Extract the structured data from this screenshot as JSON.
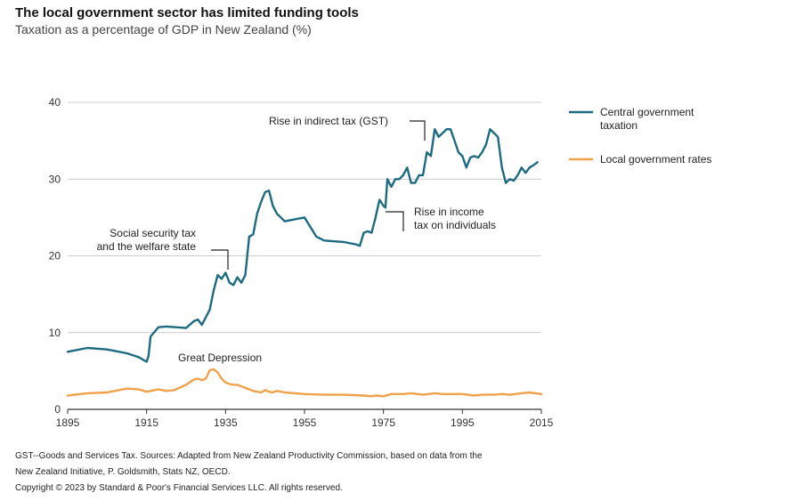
{
  "header": {
    "title": "The local government sector has limited funding tools",
    "subtitle": "Taxation as a percentage of GDP in New Zealand (%)"
  },
  "footer": {
    "line1": "GST--Goods and Services Tax. Sources: Adapted from New Zealand Productivity Commission, based on data from the",
    "line2": "New Zealand Initiative, P. Goldsmith, Stats NZ, OECD.",
    "line3": "Copyright © 2023 by Standard & Poor's Financial Services LLC. All rights reserved."
  },
  "colors": {
    "central": "#1c6b80",
    "local": "#f0a24a",
    "grid": "#bbbbbb",
    "axis": "#333333"
  },
  "chart_data": {
    "type": "line",
    "title": "",
    "xlabel": "",
    "ylabel": "",
    "xlim": [
      1895,
      2015
    ],
    "ylim": [
      0,
      40
    ],
    "xticks": [
      1895,
      1915,
      1935,
      1955,
      1975,
      1995,
      2015
    ],
    "yticks": [
      0,
      10,
      20,
      30,
      40
    ],
    "grid": "horizontal",
    "legend": "right",
    "series": [
      {
        "name": "Central government taxation",
        "color": "#1c6b80",
        "x": [
          1895,
          1900,
          1905,
          1910,
          1913,
          1915,
          1915.5,
          1916,
          1918,
          1920,
          1925,
          1927,
          1928,
          1929,
          1930,
          1931,
          1932,
          1933,
          1934,
          1935,
          1936,
          1937,
          1938,
          1939,
          1940,
          1941,
          1942,
          1943,
          1944,
          1945,
          1946,
          1947,
          1948,
          1950,
          1953,
          1955,
          1958,
          1960,
          1965,
          1968,
          1969,
          1970,
          1971,
          1972,
          1973,
          1974,
          1975,
          1975.5,
          1976,
          1977,
          1978,
          1979,
          1980,
          1981,
          1982,
          1983,
          1984,
          1985,
          1986,
          1987,
          1988,
          1989,
          1990,
          1991,
          1992,
          1993,
          1994,
          1995,
          1996,
          1997,
          1998,
          1999,
          2000,
          2001,
          2002,
          2003,
          2004,
          2005,
          2006,
          2007,
          2008,
          2009,
          2010,
          2011,
          2012,
          2013,
          2014
        ],
        "values": [
          7.5,
          8.0,
          7.8,
          7.3,
          6.8,
          6.2,
          7.0,
          9.5,
          10.7,
          10.8,
          10.6,
          11.5,
          11.7,
          11.0,
          12.0,
          13.0,
          15.5,
          17.5,
          17.0,
          17.8,
          16.5,
          16.2,
          17.2,
          16.5,
          17.5,
          22.5,
          22.8,
          25.5,
          27.0,
          28.3,
          28.5,
          26.5,
          25.5,
          24.5,
          24.8,
          25.0,
          22.5,
          22.0,
          21.8,
          21.5,
          21.3,
          23.0,
          23.2,
          23.0,
          25.0,
          27.3,
          26.5,
          26.3,
          30.0,
          29.0,
          30.0,
          30.0,
          30.5,
          31.5,
          29.5,
          29.5,
          30.5,
          30.5,
          33.5,
          33.0,
          36.5,
          35.5,
          36.0,
          36.5,
          36.5,
          35.0,
          33.5,
          33.0,
          31.5,
          32.8,
          33.0,
          32.8,
          33.5,
          34.5,
          36.5,
          36.0,
          35.5,
          31.5,
          29.5,
          30.0,
          29.8,
          30.5,
          31.5,
          30.8,
          31.5,
          31.8,
          32.2
        ]
      },
      {
        "name": "Local government rates",
        "color": "#f0a24a",
        "x": [
          1895,
          1900,
          1905,
          1910,
          1913,
          1915,
          1918,
          1920,
          1922,
          1925,
          1927,
          1928,
          1929,
          1930,
          1931,
          1932,
          1933,
          1934,
          1935,
          1936,
          1937,
          1938,
          1940,
          1942,
          1943,
          1944,
          1945,
          1946,
          1947,
          1948,
          1950,
          1955,
          1960,
          1965,
          1970,
          1972,
          1973,
          1975,
          1977,
          1980,
          1982,
          1985,
          1988,
          1990,
          1992,
          1995,
          1998,
          2000,
          2003,
          2005,
          2007,
          2010,
          2012,
          2015
        ],
        "values": [
          1.8,
          2.1,
          2.2,
          2.7,
          2.6,
          2.3,
          2.6,
          2.4,
          2.5,
          3.2,
          3.9,
          4.0,
          3.8,
          4.0,
          5.1,
          5.2,
          4.8,
          4.0,
          3.5,
          3.3,
          3.2,
          3.2,
          2.8,
          2.4,
          2.3,
          2.2,
          2.5,
          2.3,
          2.2,
          2.4,
          2.2,
          2.0,
          1.9,
          1.9,
          1.8,
          1.7,
          1.8,
          1.7,
          2.0,
          2.0,
          2.1,
          1.9,
          2.1,
          2.0,
          2.0,
          2.0,
          1.8,
          1.9,
          1.9,
          2.0,
          1.9,
          2.1,
          2.2,
          2.0
        ]
      }
    ],
    "annotations": [
      {
        "id": "gst",
        "text": [
          "Rise in indirect tax (GST)"
        ]
      },
      {
        "id": "income",
        "text": [
          "Rise in income",
          "tax on individuals"
        ]
      },
      {
        "id": "social",
        "text": [
          "Social security tax",
          "and the welfare state"
        ]
      },
      {
        "id": "depression",
        "text": [
          "Great Depression"
        ]
      }
    ],
    "legend_labels": {
      "central": [
        "Central government",
        "taxation"
      ],
      "local": [
        "Local government rates"
      ]
    }
  }
}
